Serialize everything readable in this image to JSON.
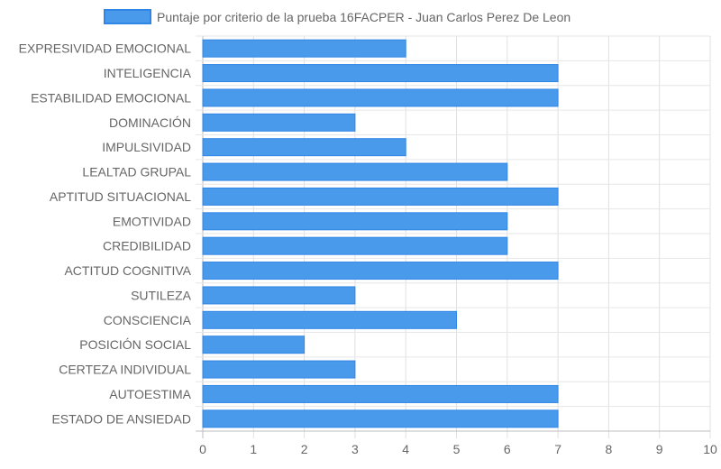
{
  "chart_data": {
    "type": "bar",
    "orientation": "horizontal",
    "legend": {
      "position": "top",
      "entries": [
        {
          "label": "Puntaje por criterio de la prueba 16FACPER - Juan Carlos Perez De Leon",
          "color": "#4a9aeb",
          "border_color": "#2f86e6"
        }
      ]
    },
    "categories": [
      "EXPRESIVIDAD EMOCIONAL",
      "INTELIGENCIA",
      "ESTABILIDAD EMOCIONAL",
      "DOMINACIÓN",
      "IMPULSIVIDAD",
      "LEALTAD GRUPAL",
      "APTITUD SITUACIONAL",
      "EMOTIVIDAD",
      "CREDIBILIDAD",
      "ACTITUD COGNITIVA",
      "SUTILEZA",
      "CONSCIENCIA",
      "POSICIÓN SOCIAL",
      "CERTEZA INDIVIDUAL",
      "AUTOESTIMA",
      "ESTADO DE ANSIEDAD"
    ],
    "series": [
      {
        "name": "Puntaje por criterio de la prueba 16FACPER - Juan Carlos Perez De Leon",
        "values": [
          4,
          7,
          7,
          3,
          4,
          6,
          7,
          6,
          6,
          7,
          3,
          5,
          2,
          3,
          7,
          7
        ],
        "color": "#4a9aeb"
      }
    ],
    "xlim": [
      0,
      10
    ],
    "x_ticks": [
      "0",
      "1",
      "2",
      "3",
      "4",
      "5",
      "6",
      "7",
      "8",
      "9",
      "10"
    ],
    "grid": true
  }
}
